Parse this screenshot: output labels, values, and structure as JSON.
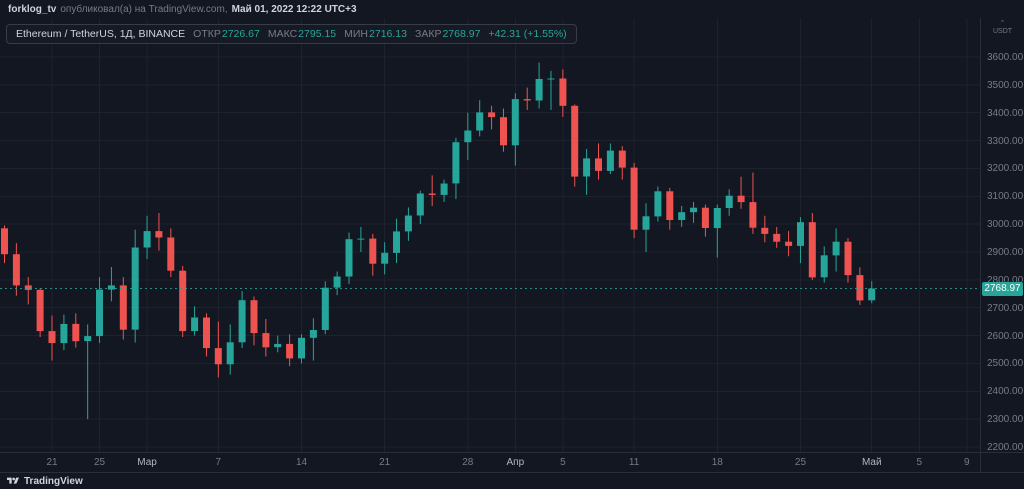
{
  "topbar": {
    "user": "forklog_tv",
    "action": "опубликовал(а) на TradingView.com,",
    "datetime": "Май 01, 2022 12:22 UTC+3"
  },
  "legend": {
    "symbol": "Ethereum / TetherUS, 1Д, BINANCE",
    "fields": [
      {
        "label": "ОТКР",
        "value": "2726.67"
      },
      {
        "label": "МАКС",
        "value": "2795.15"
      },
      {
        "label": "МИН",
        "value": "2716.13"
      },
      {
        "label": "ЗАКР",
        "value": "2768.97"
      }
    ],
    "change": "+42.31 (+1.55%)"
  },
  "price_axis": {
    "currency": "USDT",
    "labels": [
      "3600.00",
      "3500.00",
      "3400.00",
      "3300.00",
      "3200.00",
      "3100.00",
      "3000.00",
      "2900.00",
      "2800.00",
      "2700.00",
      "2600.00",
      "2500.00",
      "2400.00",
      "2300.00",
      "2200.00"
    ],
    "last_price_label": "2768.97"
  },
  "time_axis": {
    "ticks": [
      {
        "label": "21",
        "index": 4
      },
      {
        "label": "25",
        "index": 8
      },
      {
        "label": "Мар",
        "index": 12,
        "major": true
      },
      {
        "label": "7",
        "index": 18
      },
      {
        "label": "14",
        "index": 25
      },
      {
        "label": "21",
        "index": 32
      },
      {
        "label": "28",
        "index": 39
      },
      {
        "label": "Апр",
        "index": 43,
        "major": true
      },
      {
        "label": "5",
        "index": 47
      },
      {
        "label": "11",
        "index": 53
      },
      {
        "label": "18",
        "index": 60
      },
      {
        "label": "25",
        "index": 67
      },
      {
        "label": "Май",
        "index": 73,
        "major": true
      },
      {
        "label": "5",
        "index": 77
      },
      {
        "label": "9",
        "index": 81
      }
    ]
  },
  "footer": {
    "brand": "TradingView"
  },
  "colors": {
    "bg": "#131722",
    "up": "#26a69a",
    "down": "#ef5350",
    "grid": "#1e222d",
    "border": "#2a2e39",
    "text": "#d1d4dc",
    "text_muted": "#787b86"
  },
  "chart_data": {
    "type": "candlestick",
    "title": "Ethereum / TetherUS, 1Д, BINANCE",
    "symbol": "ETHUSDT",
    "interval": "1Д",
    "exchange": "BINANCE",
    "ylim": [
      2200,
      3600
    ],
    "y_step": 100,
    "last_price": 2768.97,
    "last_change": "+42.31 (+1.55%)",
    "dates": [
      "2022-02-17",
      "2022-02-18",
      "2022-02-19",
      "2022-02-20",
      "2022-02-21",
      "2022-02-22",
      "2022-02-23",
      "2022-02-24",
      "2022-02-25",
      "2022-02-26",
      "2022-02-27",
      "2022-02-28",
      "2022-03-01",
      "2022-03-02",
      "2022-03-03",
      "2022-03-04",
      "2022-03-05",
      "2022-03-06",
      "2022-03-07",
      "2022-03-08",
      "2022-03-09",
      "2022-03-10",
      "2022-03-11",
      "2022-03-12",
      "2022-03-13",
      "2022-03-14",
      "2022-03-15",
      "2022-03-16",
      "2022-03-17",
      "2022-03-18",
      "2022-03-19",
      "2022-03-20",
      "2022-03-21",
      "2022-03-22",
      "2022-03-23",
      "2022-03-24",
      "2022-03-25",
      "2022-03-26",
      "2022-03-27",
      "2022-03-28",
      "2022-03-29",
      "2022-03-30",
      "2022-03-31",
      "2022-04-01",
      "2022-04-02",
      "2022-04-03",
      "2022-04-04",
      "2022-04-05",
      "2022-04-06",
      "2022-04-07",
      "2022-04-08",
      "2022-04-09",
      "2022-04-10",
      "2022-04-11",
      "2022-04-12",
      "2022-04-13",
      "2022-04-14",
      "2022-04-15",
      "2022-04-16",
      "2022-04-17",
      "2022-04-18",
      "2022-04-19",
      "2022-04-20",
      "2022-04-21",
      "2022-04-22",
      "2022-04-23",
      "2022-04-24",
      "2022-04-25",
      "2022-04-26",
      "2022-04-27",
      "2022-04-28",
      "2022-04-29",
      "2022-04-30",
      "2022-05-01"
    ],
    "ohlc": [
      [
        2985,
        2995,
        2860,
        2892
      ],
      [
        2892,
        2932,
        2743,
        2780
      ],
      [
        2780,
        2810,
        2712,
        2764
      ],
      [
        2764,
        2770,
        2595,
        2616
      ],
      [
        2616,
        2672,
        2510,
        2573
      ],
      [
        2573,
        2675,
        2548,
        2642
      ],
      [
        2642,
        2680,
        2557,
        2580
      ],
      [
        2580,
        2640,
        2300,
        2598
      ],
      [
        2598,
        2810,
        2573,
        2765
      ],
      [
        2765,
        2846,
        2723,
        2780
      ],
      [
        2780,
        2810,
        2586,
        2621
      ],
      [
        2621,
        2980,
        2575,
        2916
      ],
      [
        2916,
        3030,
        2875,
        2975
      ],
      [
        2975,
        3040,
        2905,
        2952
      ],
      [
        2952,
        2985,
        2810,
        2833
      ],
      [
        2833,
        2850,
        2595,
        2616
      ],
      [
        2616,
        2705,
        2600,
        2665
      ],
      [
        2665,
        2680,
        2525,
        2555
      ],
      [
        2555,
        2650,
        2450,
        2497
      ],
      [
        2497,
        2640,
        2460,
        2576
      ],
      [
        2576,
        2760,
        2555,
        2727
      ],
      [
        2727,
        2740,
        2565,
        2609
      ],
      [
        2609,
        2660,
        2525,
        2558
      ],
      [
        2558,
        2600,
        2540,
        2570
      ],
      [
        2570,
        2605,
        2490,
        2518
      ],
      [
        2518,
        2605,
        2500,
        2592
      ],
      [
        2592,
        2662,
        2510,
        2620
      ],
      [
        2620,
        2795,
        2605,
        2772
      ],
      [
        2772,
        2830,
        2745,
        2812
      ],
      [
        2812,
        2970,
        2785,
        2946
      ],
      [
        2946,
        2990,
        2900,
        2948
      ],
      [
        2948,
        2965,
        2815,
        2858
      ],
      [
        2858,
        2935,
        2820,
        2897
      ],
      [
        2897,
        3020,
        2860,
        2974
      ],
      [
        2974,
        3060,
        2940,
        3031
      ],
      [
        3031,
        3120,
        3000,
        3110
      ],
      [
        3110,
        3175,
        3065,
        3105
      ],
      [
        3105,
        3160,
        3080,
        3146
      ],
      [
        3146,
        3310,
        3090,
        3294
      ],
      [
        3294,
        3400,
        3230,
        3336
      ],
      [
        3336,
        3445,
        3315,
        3401
      ],
      [
        3401,
        3425,
        3340,
        3384
      ],
      [
        3384,
        3415,
        3260,
        3283
      ],
      [
        3283,
        3470,
        3210,
        3449
      ],
      [
        3449,
        3490,
        3410,
        3444
      ],
      [
        3444,
        3580,
        3415,
        3521
      ],
      [
        3521,
        3550,
        3410,
        3523
      ],
      [
        3523,
        3555,
        3385,
        3425
      ],
      [
        3425,
        3430,
        3135,
        3171
      ],
      [
        3171,
        3270,
        3105,
        3236
      ],
      [
        3236,
        3290,
        3160,
        3191
      ],
      [
        3191,
        3290,
        3180,
        3264
      ],
      [
        3264,
        3280,
        3160,
        3203
      ],
      [
        3203,
        3220,
        2950,
        2980
      ],
      [
        2980,
        3075,
        2900,
        3028
      ],
      [
        3028,
        3135,
        3010,
        3118
      ],
      [
        3118,
        3130,
        2980,
        3015
      ],
      [
        3015,
        3065,
        2990,
        3043
      ],
      [
        3043,
        3080,
        3005,
        3059
      ],
      [
        3059,
        3070,
        2955,
        2986
      ],
      [
        2986,
        3070,
        2880,
        3058
      ],
      [
        3058,
        3125,
        3030,
        3102
      ],
      [
        3102,
        3170,
        3055,
        3079
      ],
      [
        3079,
        3185,
        2965,
        2987
      ],
      [
        2987,
        3030,
        2935,
        2965
      ],
      [
        2965,
        2990,
        2915,
        2937
      ],
      [
        2937,
        2975,
        2885,
        2922
      ],
      [
        2922,
        3025,
        2860,
        3007
      ],
      [
        3007,
        3040,
        2800,
        2809
      ],
      [
        2809,
        2920,
        2790,
        2888
      ],
      [
        2888,
        2985,
        2830,
        2937
      ],
      [
        2937,
        2950,
        2790,
        2817
      ],
      [
        2817,
        2845,
        2710,
        2726
      ],
      [
        2726.67,
        2795.15,
        2716.13,
        2768.97
      ]
    ]
  }
}
